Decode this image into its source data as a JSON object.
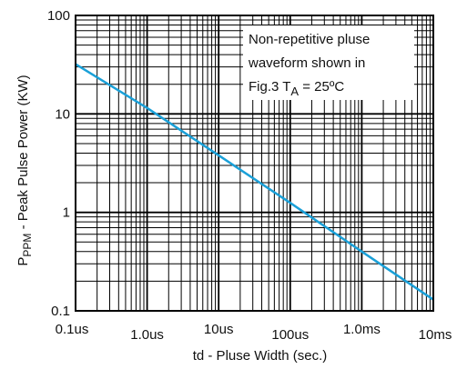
{
  "chart_data": {
    "type": "line",
    "x_scale": "log",
    "y_scale": "log",
    "xlim": [
      1e-07,
      0.01
    ],
    "ylim": [
      0.1,
      100
    ],
    "x_ticks": [
      {
        "value": 1e-07,
        "label": "0.1us"
      },
      {
        "value": 1e-06,
        "label": "1.0us"
      },
      {
        "value": 1e-05,
        "label": "10us"
      },
      {
        "value": 0.0001,
        "label": "100us"
      },
      {
        "value": 0.001,
        "label": "1.0ms"
      },
      {
        "value": 0.01,
        "label": "10ms"
      }
    ],
    "y_ticks": [
      {
        "value": 0.1,
        "label": "0.1"
      },
      {
        "value": 1,
        "label": "1"
      },
      {
        "value": 10,
        "label": "10"
      },
      {
        "value": 100,
        "label": "100"
      }
    ],
    "xlabel": "td - Pluse Width (sec.)",
    "ylabel_prefix": "P",
    "ylabel_subscript": "PPM",
    "ylabel_rest": " - Peak Pulse Power (KW)",
    "grid": true,
    "series": [
      {
        "color": "#1aa0d8",
        "x": [
          1e-07,
          1e-06,
          1e-05,
          0.0001,
          0.001,
          0.01
        ],
        "y": [
          32,
          11.5,
          3.8,
          1.25,
          0.4,
          0.13
        ]
      }
    ],
    "annotation": {
      "line1": "Non-repetitive pluse",
      "line2": "waveform shown in",
      "line3_prefix": "Fig.3 T",
      "line3_subscript": "A",
      "line3_suffix": " = 25ºC"
    }
  }
}
